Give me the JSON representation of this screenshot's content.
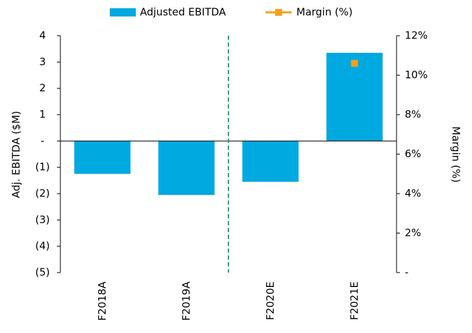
{
  "chart_data": {
    "type": "bar",
    "categories": [
      "F2018A",
      "F2019A",
      "F2020E",
      "F2021E"
    ],
    "series": [
      {
        "name": "Adjusted EBITDA",
        "color": "#00a9e0",
        "values": [
          -1.25,
          -2.05,
          -1.55,
          3.35
        ]
      },
      {
        "name": "Margin (%)",
        "color": "#f5a01a",
        "axis": "y2",
        "values": [
          null,
          null,
          null,
          10.6
        ]
      }
    ],
    "ylabel": "Adj. EBITDA ($M)",
    "y2label": "Margin (%)",
    "ylim": [
      -5,
      4
    ],
    "yticks": [
      4,
      3,
      2,
      1,
      {
        "value": 0,
        "label": "-"
      },
      {
        "value": -1,
        "label": "(1)"
      },
      {
        "value": -2,
        "label": "(2)"
      },
      {
        "value": -3,
        "label": "(3)"
      },
      {
        "value": -4,
        "label": "(4)"
      },
      {
        "value": -5,
        "label": "(5)"
      }
    ],
    "y2lim": [
      0,
      12
    ],
    "y2ticks": [
      {
        "value": 0,
        "label": "-"
      },
      {
        "value": 2,
        "label": "2%"
      },
      {
        "value": 4,
        "label": "4%"
      },
      {
        "value": 6,
        "label": "6%"
      },
      {
        "value": 8,
        "label": "8%"
      },
      {
        "value": 10,
        "label": "10%"
      },
      {
        "value": 12,
        "label": "12%"
      }
    ],
    "legend": "top"
  }
}
